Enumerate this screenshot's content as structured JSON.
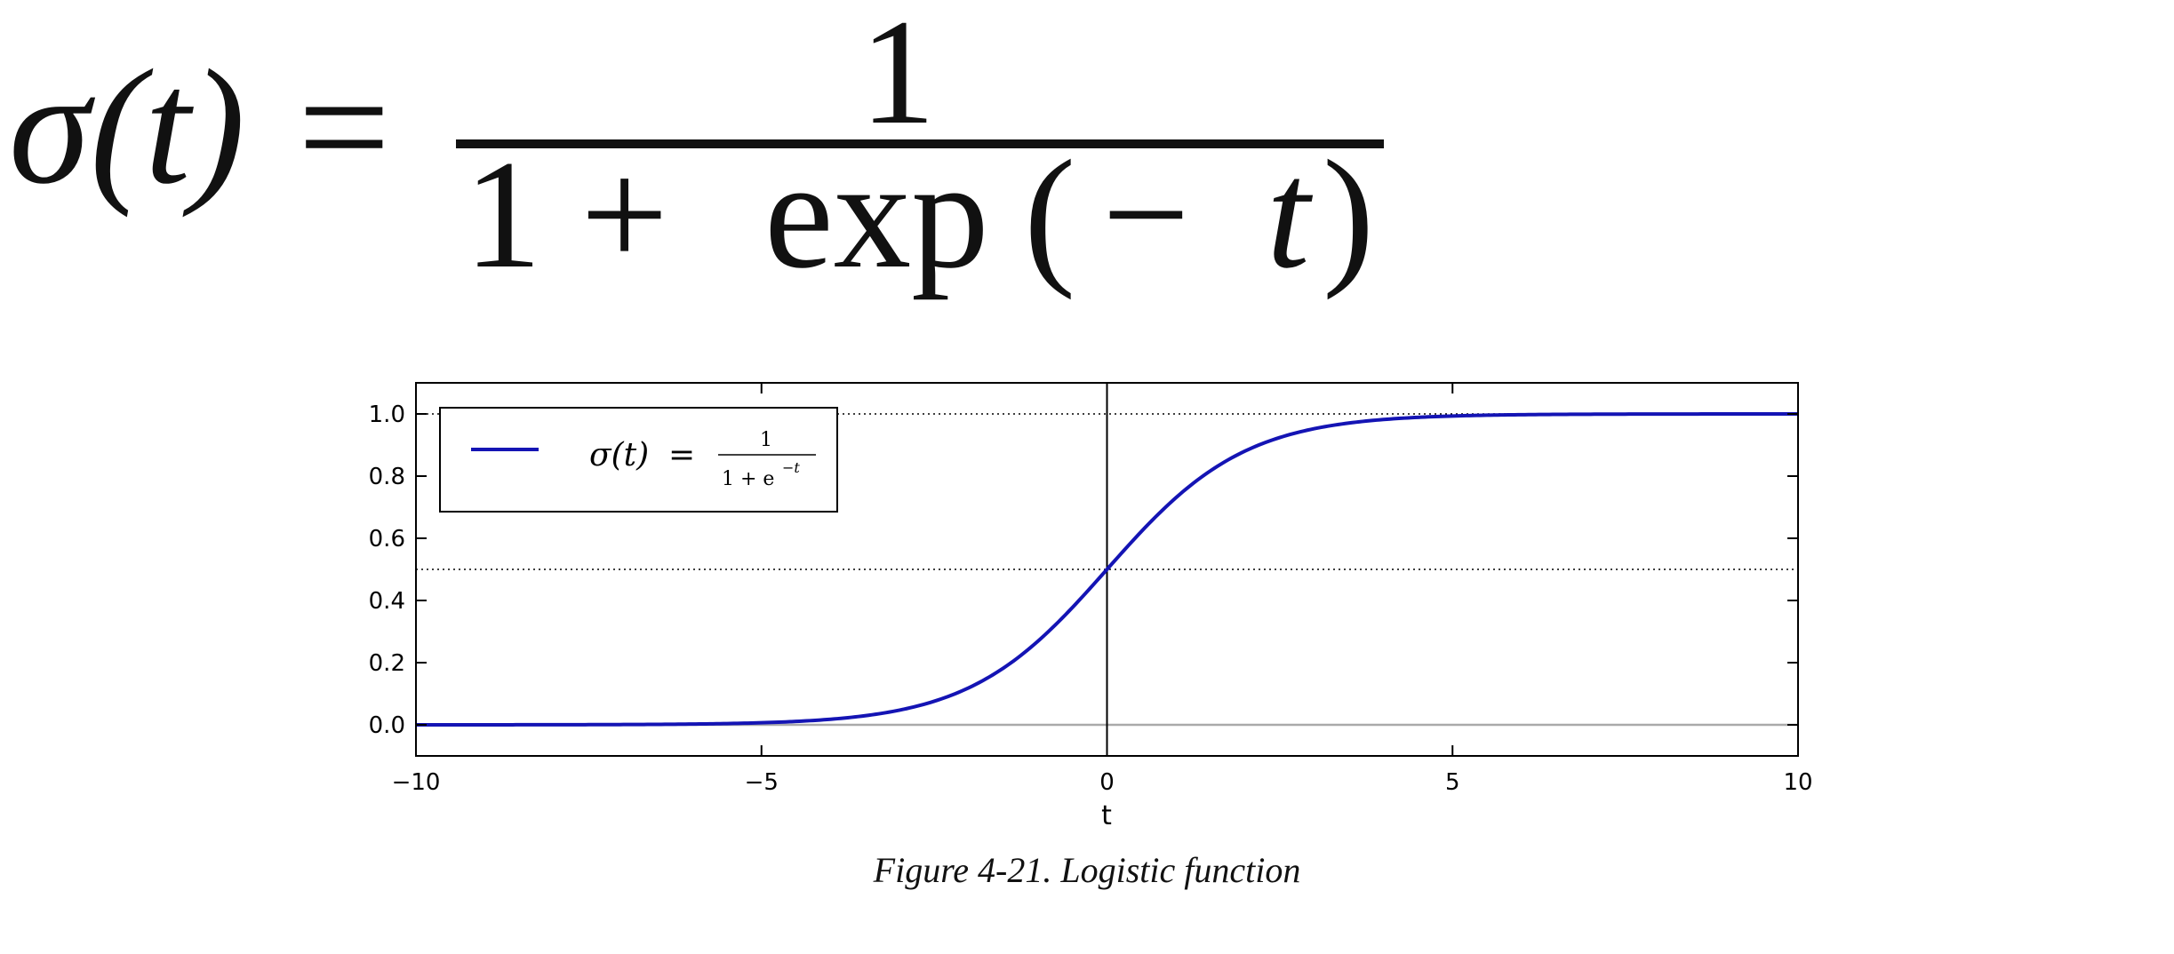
{
  "formula": {
    "lhs": "σ(t)",
    "equals": "=",
    "numerator": "1",
    "denominator_lead": "1 +",
    "denominator_fn": "exp",
    "denominator_arg_open": "(",
    "denominator_arg_minus": "−",
    "denominator_arg_var": "t",
    "denominator_arg_close": ")"
  },
  "chart_data": {
    "type": "line",
    "xlabel": "t",
    "ylabel": "",
    "xlim": [
      -10,
      10
    ],
    "ylim": [
      -0.1,
      1.1
    ],
    "x_ticks": [
      -10,
      -5,
      0,
      5,
      10
    ],
    "x_tick_labels": [
      "−10",
      "−5",
      "0",
      "5",
      "10"
    ],
    "y_ticks": [
      0.0,
      0.2,
      0.4,
      0.6,
      0.8,
      1.0
    ],
    "y_tick_labels": [
      "0.0",
      "0.2",
      "0.4",
      "0.6",
      "0.8",
      "1.0"
    ],
    "grid": false,
    "legend_position": "top-left",
    "reference_lines": {
      "horizontal_dotted": [
        0.5,
        1.0
      ],
      "horizontal_solid": [
        0.0
      ],
      "vertical_solid": [
        0
      ]
    },
    "series": [
      {
        "name": "σ(t) = 1 / (1 + e^−t)",
        "legend_lhs": "σ(t)",
        "legend_eq": "=",
        "legend_num": "1",
        "legend_den": "1 + e",
        "legend_exp": "−t",
        "color": "#1414b4",
        "x": [
          -10,
          -9,
          -8,
          -7,
          -6,
          -5,
          -4,
          -3,
          -2.5,
          -2,
          -1.5,
          -1,
          -0.5,
          0,
          0.5,
          1,
          1.5,
          2,
          2.5,
          3,
          4,
          5,
          6,
          7,
          8,
          9,
          10
        ],
        "y": [
          5e-05,
          0.0001,
          0.0003,
          0.0009,
          0.0025,
          0.0067,
          0.018,
          0.047,
          0.076,
          0.119,
          0.182,
          0.269,
          0.378,
          0.5,
          0.622,
          0.731,
          0.818,
          0.881,
          0.924,
          0.953,
          0.982,
          0.9933,
          0.9975,
          0.9991,
          0.9997,
          0.9999,
          0.99995
        ]
      }
    ]
  },
  "caption": "Figure 4-21. Logistic function"
}
